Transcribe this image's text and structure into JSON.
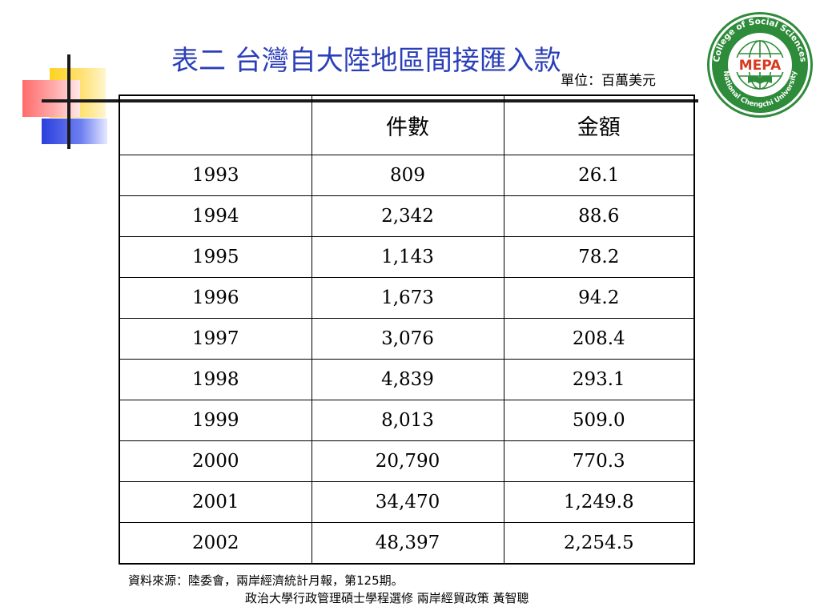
{
  "slide": {
    "title": "表二 台灣自大陸地區間接匯入款",
    "unit": "單位：百萬美元",
    "logo": {
      "ring_text_top": "College of Social Sciences",
      "ring_text_bottom": "National Chengchi University",
      "center_text": "MEPA",
      "colors": {
        "ring": "#2e8b3a",
        "center_text": "#d83a1f"
      }
    },
    "accent_colors": {
      "title": "#2b3fb8",
      "yellow": "#ffd21f",
      "red": "#ff6b6b",
      "blue": "#2a3fdc"
    }
  },
  "table": {
    "headers": [
      "",
      "件數",
      "金額"
    ],
    "rows": [
      [
        "1993",
        "809",
        "26.1"
      ],
      [
        "1994",
        "2,342",
        "88.6"
      ],
      [
        "1995",
        "1,143",
        "78.2"
      ],
      [
        "1996",
        "1,673",
        "94.2"
      ],
      [
        "1997",
        "3,076",
        "208.4"
      ],
      [
        "1998",
        "4,839",
        "293.1"
      ],
      [
        "1999",
        "8,013",
        "509.0"
      ],
      [
        "2000",
        "20,790",
        "770.3"
      ],
      [
        "2001",
        "34,470",
        "1,249.8"
      ],
      [
        "2002",
        "48,397",
        "2,254.5"
      ]
    ]
  },
  "source": "資料來源：陸委會，兩岸經濟統計月報，第125期。",
  "footer": "政治大學行政管理碩士學程選修 兩岸經貿政策 黃智聰"
}
